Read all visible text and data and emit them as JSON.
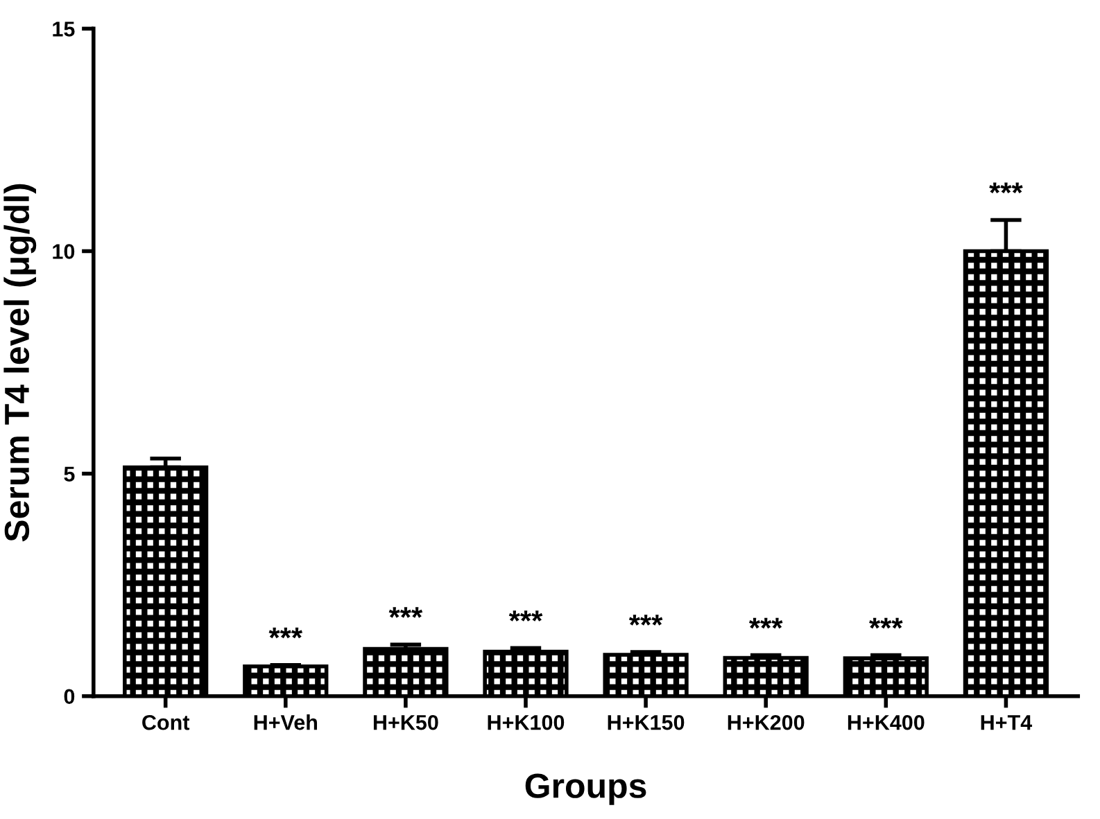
{
  "chart_data": {
    "type": "bar",
    "xlabel": "Groups",
    "ylabel": "Serum T4 level (μg/dl)",
    "categories": [
      "Cont",
      "H+Veh",
      "H+K50",
      "H+K100",
      "H+K150",
      "H+K200",
      "H+K400",
      "H+T4"
    ],
    "values": [
      5.14,
      0.67,
      1.06,
      1.0,
      0.93,
      0.86,
      0.85,
      10.0
    ],
    "errors": [
      0.2,
      0.03,
      0.1,
      0.08,
      0.06,
      0.06,
      0.07,
      0.7
    ],
    "color": "#000000",
    "ylim": [
      0,
      15
    ],
    "yticks": [
      0,
      5,
      10,
      15
    ],
    "grid": false,
    "legend": false,
    "annotations": [
      {
        "text": "***",
        "x": "H+Veh",
        "y": 0.7
      },
      {
        "text": "***",
        "x": "H+K50",
        "y": 1.16
      },
      {
        "text": "***",
        "x": "H+K100",
        "y": 1.08
      },
      {
        "text": "***",
        "x": "H+K150",
        "y": 0.99
      },
      {
        "text": "***",
        "x": "H+K200",
        "y": 0.92
      },
      {
        "text": "***",
        "x": "H+K400",
        "y": 0.92
      },
      {
        "text": "***",
        "x": "H+T4",
        "y": 10.7
      }
    ]
  }
}
